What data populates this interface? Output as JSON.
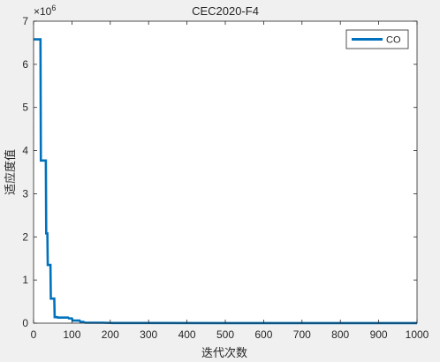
{
  "chart_data": {
    "type": "line",
    "title": "CEC2020-F4",
    "xlabel": "迭代次数",
    "ylabel": "适应度值",
    "xlim": [
      0,
      1000
    ],
    "ylim": [
      0,
      7000000
    ],
    "xticks": [
      "0",
      "100",
      "200",
      "300",
      "400",
      "500",
      "600",
      "700",
      "800",
      "900",
      "1000"
    ],
    "yticks": [
      "0",
      "1",
      "2",
      "3",
      "4",
      "5",
      "6",
      "7"
    ],
    "yexponent_label": "×10",
    "yexponent_power": "6",
    "legend_position": "top-right",
    "grid": false,
    "series": [
      {
        "name": "CO",
        "color": "#0072BD",
        "points": [
          [
            0,
            6580000
          ],
          [
            18,
            6580000
          ],
          [
            19,
            3770000
          ],
          [
            32,
            3770000
          ],
          [
            33,
            2080000
          ],
          [
            36,
            2080000
          ],
          [
            37,
            1350000
          ],
          [
            44,
            1350000
          ],
          [
            45,
            570000
          ],
          [
            54,
            570000
          ],
          [
            55,
            140000
          ],
          [
            62,
            140000
          ],
          [
            63,
            130000
          ],
          [
            90,
            130000
          ],
          [
            92,
            110000
          ],
          [
            100,
            110000
          ],
          [
            102,
            60000
          ],
          [
            120,
            60000
          ],
          [
            122,
            30000
          ],
          [
            130,
            30000
          ],
          [
            135,
            10000
          ],
          [
            180,
            10000
          ],
          [
            200,
            5000
          ],
          [
            300,
            3000
          ],
          [
            500,
            2000
          ],
          [
            700,
            1500
          ],
          [
            1000,
            1000
          ]
        ]
      }
    ]
  }
}
